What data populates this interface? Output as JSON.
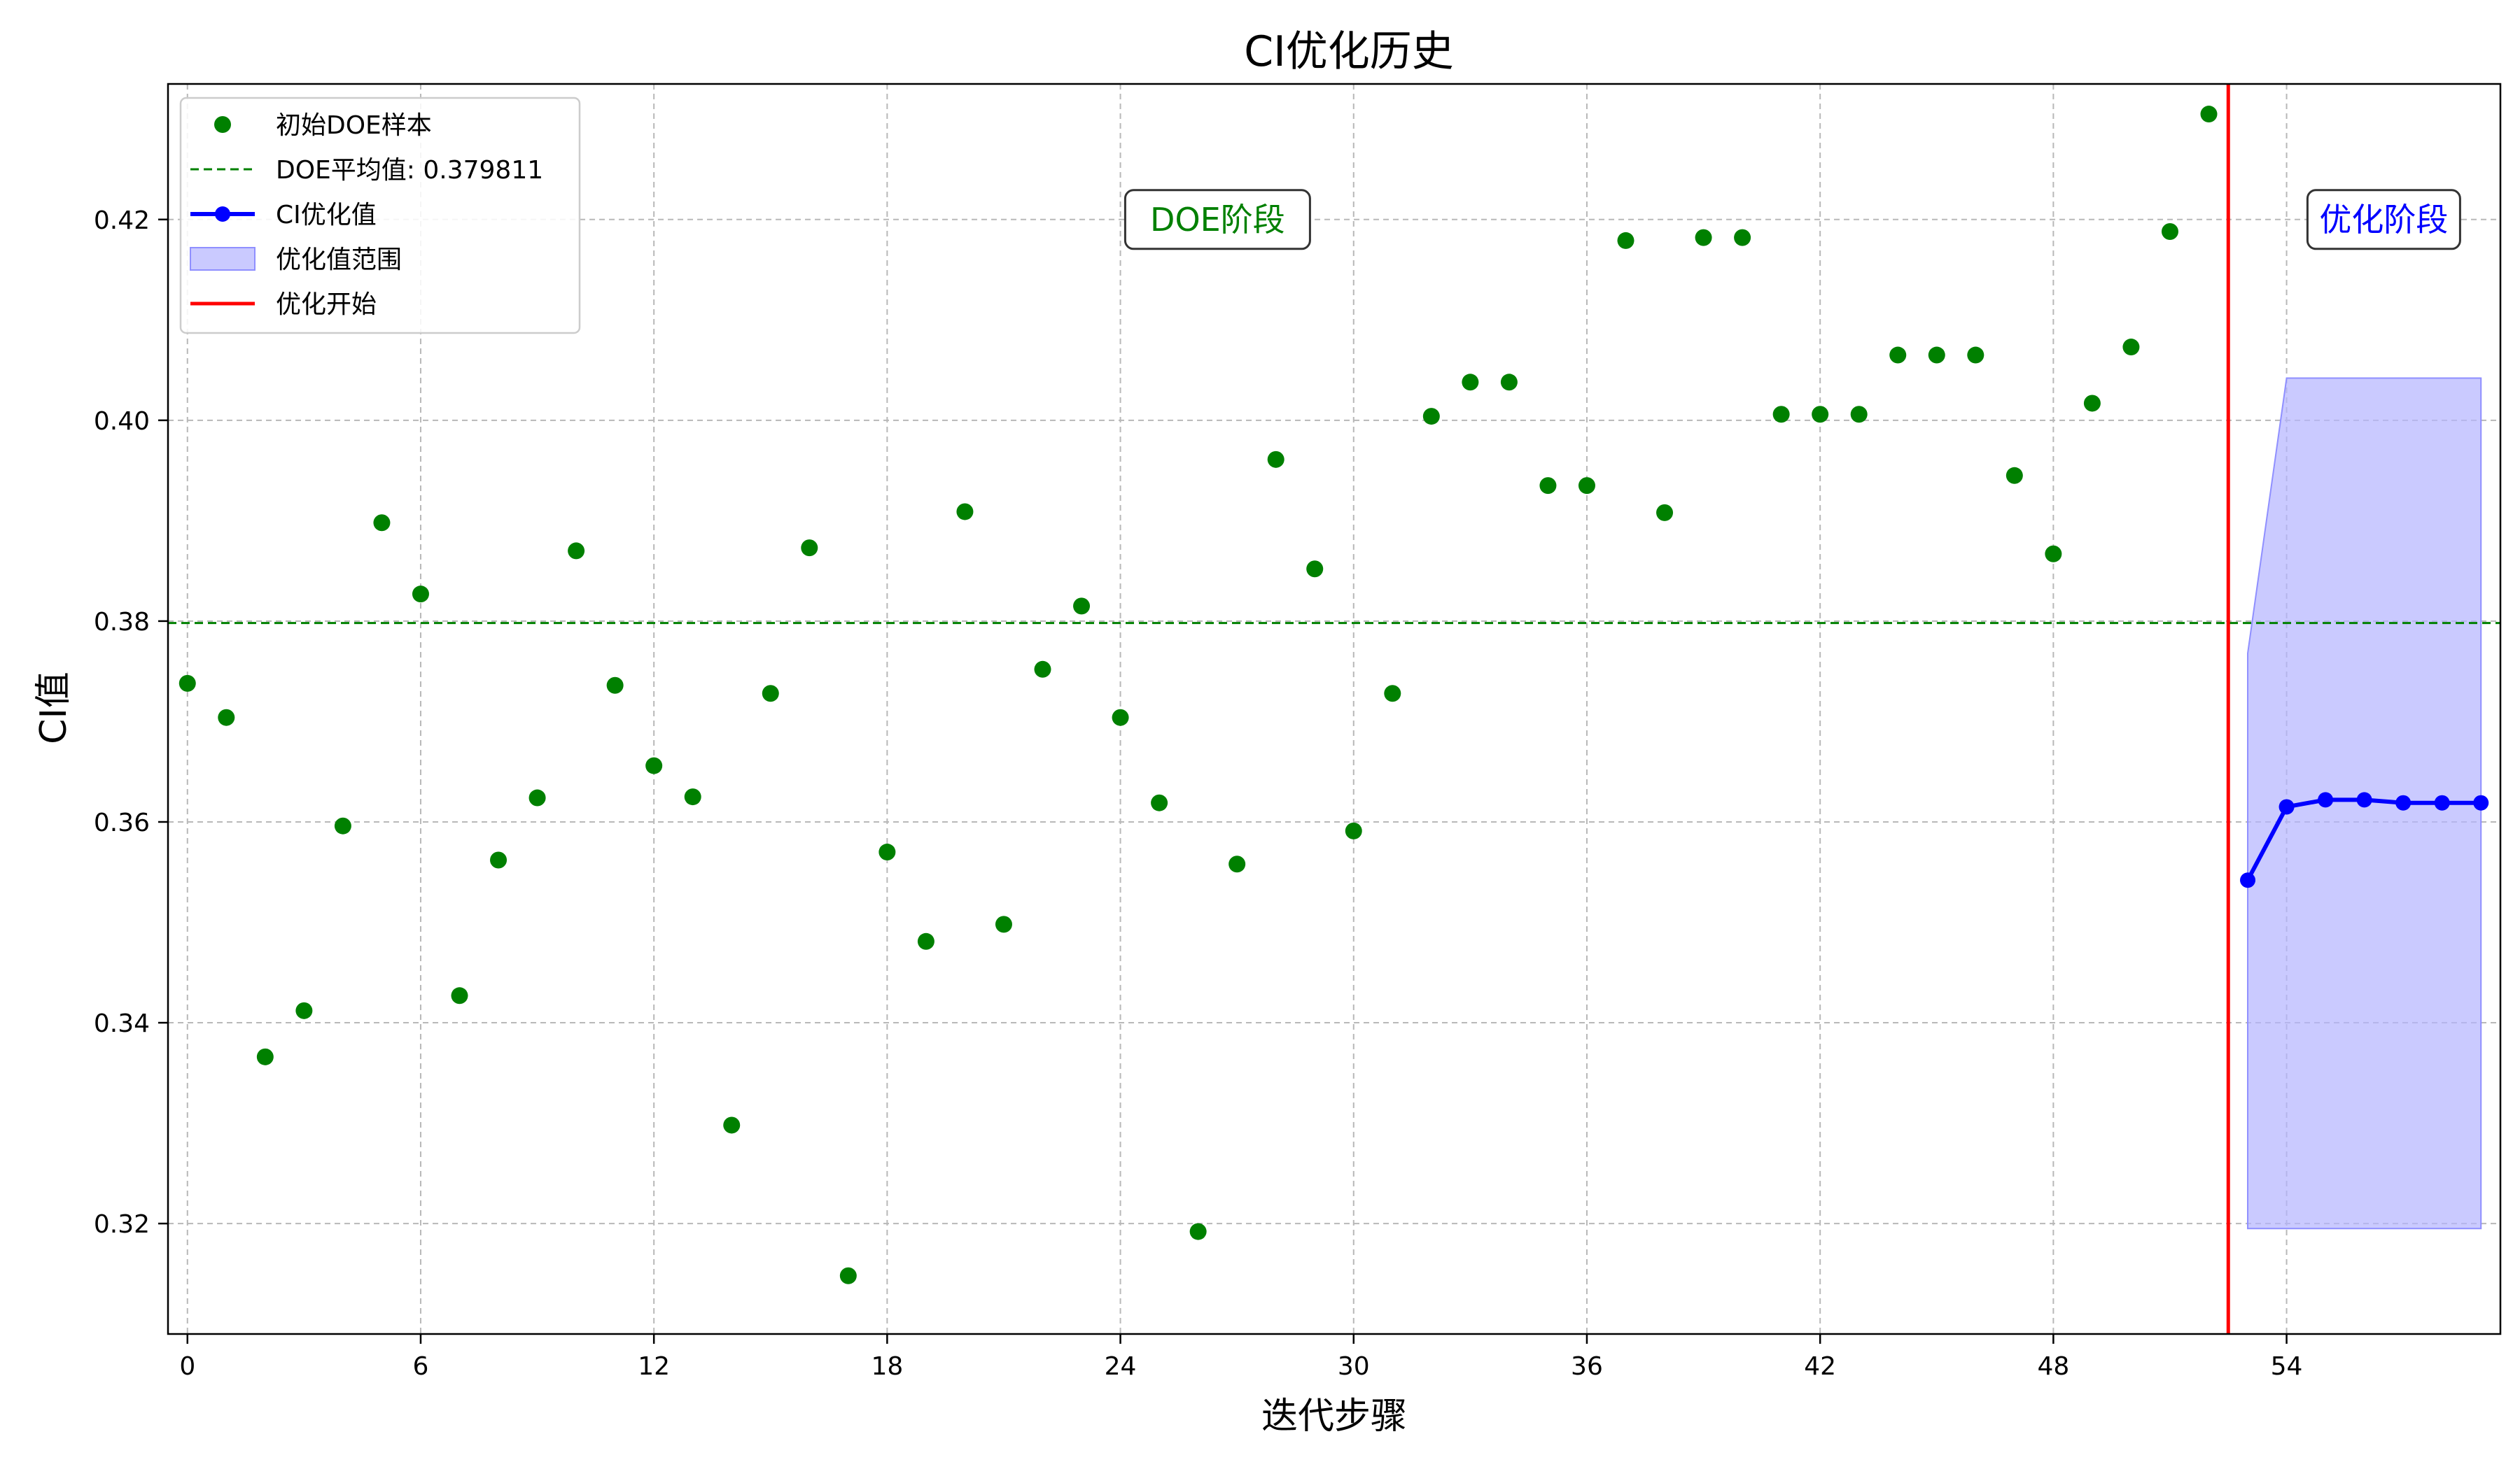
{
  "chart_data": {
    "type": "scatter",
    "title": "CI优化历史",
    "xlabel": "迭代步骤",
    "ylabel": "CI值",
    "xlim": [
      -0.5,
      59.5
    ],
    "ylim": [
      0.309,
      0.4335
    ],
    "xticks": [
      0,
      6,
      12,
      18,
      24,
      30,
      36,
      42,
      48,
      54
    ],
    "yticks": [
      0.32,
      0.34,
      0.36,
      0.38,
      0.4,
      0.42
    ],
    "ytick_labels": [
      "0.32",
      "0.34",
      "0.36",
      "0.38",
      "0.40",
      "0.42"
    ],
    "grid": true,
    "legend_position": "upper left",
    "colors": {
      "doe": "#008000",
      "mean": "#008000",
      "opt": "#0000ff",
      "band": "#b3b3ff",
      "start": "#ff0000"
    },
    "legend": [
      {
        "label": "初始DOE样本",
        "kind": "dot",
        "color": "#008000"
      },
      {
        "label": "DOE平均值: 0.379811",
        "kind": "dashed",
        "color": "#008000"
      },
      {
        "label": "CI优化值",
        "kind": "line-dot",
        "color": "#0000ff"
      },
      {
        "label": "优化值范围",
        "kind": "patch",
        "color": "#b3b3ff"
      },
      {
        "label": "优化开始",
        "kind": "line",
        "color": "#ff0000"
      }
    ],
    "annotations": [
      {
        "text": "DOE阶段",
        "x": 26.5,
        "y": 0.42,
        "color": "#008000"
      },
      {
        "text": "优化阶段",
        "x": 56.5,
        "y": 0.42,
        "color": "#0000ff"
      }
    ],
    "doe_mean": 0.379811,
    "optimization_start_x": 52.5,
    "series": [
      {
        "name": "初始DOE样本",
        "kind": "scatter",
        "x": [
          0,
          1,
          2,
          3,
          4,
          5,
          6,
          7,
          8,
          9,
          10,
          11,
          12,
          13,
          14,
          15,
          16,
          17,
          18,
          19,
          20,
          21,
          22,
          23,
          24,
          25,
          26,
          27,
          28,
          29,
          30,
          31,
          32,
          33,
          34,
          35,
          36,
          37,
          38,
          39,
          40,
          41,
          42,
          43,
          44,
          45,
          46,
          47,
          48,
          49,
          50,
          51,
          52
        ],
        "y": [
          0.3738,
          0.3704,
          0.3366,
          0.3412,
          0.3596,
          0.3898,
          0.3827,
          0.3427,
          0.3562,
          0.3624,
          0.387,
          0.3736,
          0.3656,
          0.3625,
          0.3298,
          0.3728,
          0.3873,
          0.3148,
          0.357,
          0.3481,
          0.3909,
          0.3498,
          0.3752,
          0.3815,
          0.3704,
          0.3619,
          0.3192,
          0.3558,
          0.3961,
          0.3852,
          0.3591,
          0.3728,
          0.4004,
          0.4038,
          0.4038,
          0.3935,
          0.3935,
          0.4179,
          0.3908,
          0.4182,
          0.4182,
          0.4006,
          0.4006,
          0.4006,
          0.4065,
          0.4065,
          0.4065,
          0.3945,
          0.3867,
          0.4017,
          0.4073,
          0.4188,
          0.4305
        ]
      },
      {
        "name": "CI优化值",
        "kind": "line",
        "x": [
          53,
          54,
          55,
          56,
          57,
          58,
          59
        ],
        "y": [
          0.3542,
          0.3615,
          0.3622,
          0.3622,
          0.3619,
          0.3619,
          0.3619
        ]
      }
    ],
    "band": {
      "name": "优化值范围",
      "x": [
        53,
        54,
        55,
        56,
        57,
        58,
        59
      ],
      "lower": [
        0.3195,
        0.3195,
        0.3195,
        0.3195,
        0.3195,
        0.3195,
        0.3195
      ],
      "upper": [
        0.3768,
        0.4042,
        0.4042,
        0.4042,
        0.4042,
        0.4042,
        0.4042
      ]
    }
  }
}
